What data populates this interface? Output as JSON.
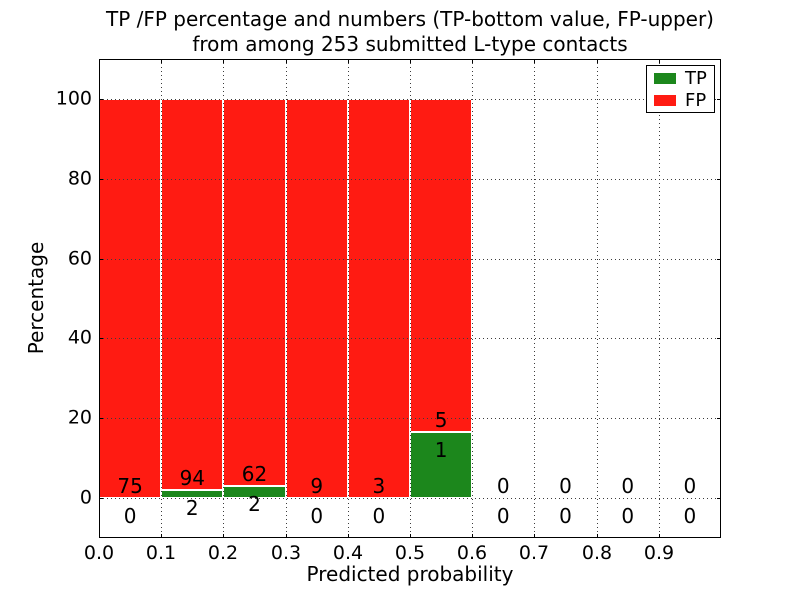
{
  "chart_data": {
    "type": "bar",
    "stacked": true,
    "title_lines": [
      "TP /FP percentage and numbers (TP-bottom value, FP-upper)",
      "from among 253 submitted L-type contacts"
    ],
    "xlabel": "Predicted probability",
    "ylabel": "Percentage",
    "xlim": [
      0.0,
      1.0
    ],
    "ylim": [
      -10,
      110
    ],
    "x_tick_values": [
      0.0,
      0.1,
      0.2,
      0.3,
      0.4,
      0.5,
      0.6,
      0.7,
      0.8,
      0.9
    ],
    "x_tick_labels": [
      "0.0",
      "0.1",
      "0.2",
      "0.3",
      "0.4",
      "0.5",
      "0.6",
      "0.7",
      "0.8",
      "0.9"
    ],
    "y_tick_values": [
      0,
      20,
      40,
      60,
      80,
      100
    ],
    "y_tick_labels": [
      "0",
      "20",
      "40",
      "60",
      "80",
      "100"
    ],
    "grid": "dotted",
    "total_contacts": 253,
    "series": [
      {
        "name": "TP",
        "color": "#1c871c"
      },
      {
        "name": "FP",
        "color": "#ff1b12"
      }
    ],
    "legend": {
      "position": "upper right"
    },
    "bins": [
      {
        "x0": 0.0,
        "x1": 0.1,
        "tp": 0,
        "fp": 75,
        "tp_pct": 0,
        "fp_pct": 100
      },
      {
        "x0": 0.1,
        "x1": 0.2,
        "tp": 2,
        "fp": 94,
        "tp_pct": 2.08,
        "fp_pct": 97.92
      },
      {
        "x0": 0.2,
        "x1": 0.3,
        "tp": 2,
        "fp": 62,
        "tp_pct": 3.13,
        "fp_pct": 96.87
      },
      {
        "x0": 0.3,
        "x1": 0.4,
        "tp": 0,
        "fp": 9,
        "tp_pct": 0,
        "fp_pct": 100
      },
      {
        "x0": 0.4,
        "x1": 0.5,
        "tp": 0,
        "fp": 3,
        "tp_pct": 0,
        "fp_pct": 100
      },
      {
        "x0": 0.5,
        "x1": 0.6,
        "tp": 1,
        "fp": 5,
        "tp_pct": 16.67,
        "fp_pct": 83.33
      },
      {
        "x0": 0.6,
        "x1": 0.7,
        "tp": 0,
        "fp": 0,
        "tp_pct": 0,
        "fp_pct": 0
      },
      {
        "x0": 0.7,
        "x1": 0.8,
        "tp": 0,
        "fp": 0,
        "tp_pct": 0,
        "fp_pct": 0
      },
      {
        "x0": 0.8,
        "x1": 0.9,
        "tp": 0,
        "fp": 0,
        "tp_pct": 0,
        "fp_pct": 0
      },
      {
        "x0": 0.9,
        "x1": 1.0,
        "tp": 0,
        "fp": 0,
        "tp_pct": 0,
        "fp_pct": 0
      }
    ]
  }
}
